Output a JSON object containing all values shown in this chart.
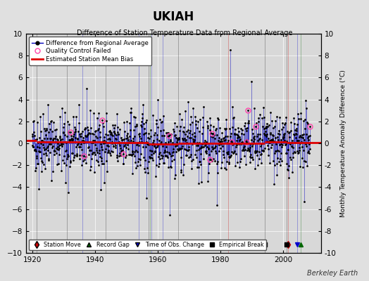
{
  "title": "UKIAH",
  "subtitle": "Difference of Station Temperature Data from Regional Average",
  "ylabel_right": "Monthly Temperature Anomaly Difference (°C)",
  "xlim": [
    1918,
    2012
  ],
  "ylim": [
    -10,
    10
  ],
  "yticks": [
    -10,
    -8,
    -6,
    -4,
    -2,
    0,
    2,
    4,
    6,
    8,
    10
  ],
  "xticks": [
    1920,
    1940,
    1960,
    1980,
    2000
  ],
  "background_color": "#e0e0e0",
  "plot_bg_color": "#d8d8d8",
  "line_color": "#0000bb",
  "dot_color": "#000000",
  "bias_color": "#dd0000",
  "qc_color": "#ff44aa",
  "station_move_color": "#cc0000",
  "record_gap_color": "#006600",
  "tobs_color": "#0000cc",
  "empirical_color": "#000000",
  "station_moves": [
    1982.5,
    2001.5
  ],
  "record_gaps": [
    1957.5,
    2005.5
  ],
  "tobs_changes": [
    1936.0,
    1954.0,
    1958.0,
    1961.5,
    2004.5
  ],
  "empirical_breaks": [
    1921.5,
    1931.0,
    1943.5,
    1957.0,
    1966.5,
    1994.0,
    2001.0
  ],
  "bias_segments": [
    {
      "x": [
        1918,
        1921.5
      ],
      "y": [
        0.25,
        0.25
      ]
    },
    {
      "x": [
        1921.5,
        1931.0
      ],
      "y": [
        0.1,
        0.1
      ]
    },
    {
      "x": [
        1931.0,
        1943.5
      ],
      "y": [
        0.12,
        0.12
      ]
    },
    {
      "x": [
        1943.5,
        1957.0
      ],
      "y": [
        0.05,
        0.05
      ]
    },
    {
      "x": [
        1957.0,
        1966.5
      ],
      "y": [
        -0.08,
        -0.08
      ]
    },
    {
      "x": [
        1966.5,
        1994.0
      ],
      "y": [
        0.0,
        0.0
      ]
    },
    {
      "x": [
        1994.0,
        2001.0
      ],
      "y": [
        0.15,
        0.15
      ]
    },
    {
      "x": [
        2001.0,
        2012
      ],
      "y": [
        0.08,
        0.08
      ]
    }
  ],
  "seed": 42,
  "n_points": 1060,
  "data_start_year": 1920.0,
  "data_end_year": 2008.5,
  "berkeley_earth_text": "Berkeley Earth"
}
